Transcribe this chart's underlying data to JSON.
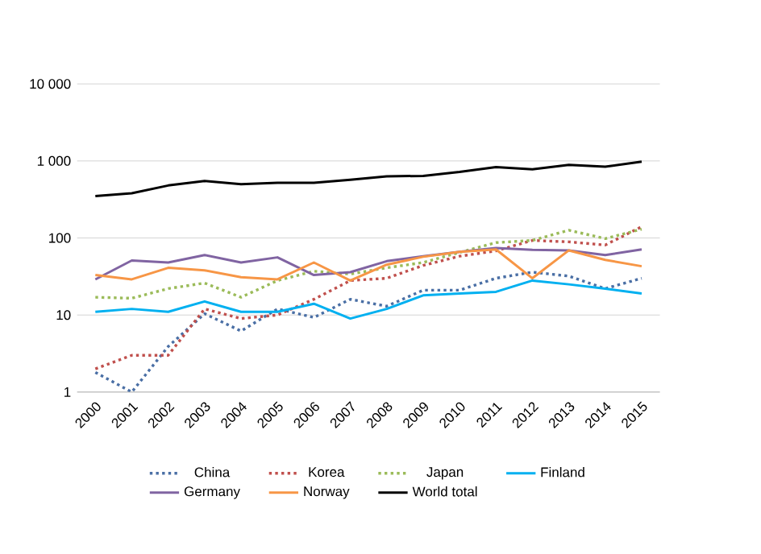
{
  "chart_data": {
    "type": "line",
    "log": "y",
    "grid": "y",
    "legend": "bottom",
    "marker": "none",
    "categories": [
      "2000",
      "2001",
      "2002",
      "2003",
      "2004",
      "2005",
      "2006",
      "2007",
      "2008",
      "2009",
      "2010",
      "2011",
      "2012",
      "2013",
      "2014",
      "2015"
    ],
    "ylim": [
      1,
      10000
    ],
    "yticks": [
      {
        "value": 1,
        "label": "1"
      },
      {
        "value": 10,
        "label": "10"
      },
      {
        "value": 100,
        "label": "100"
      },
      {
        "value": 1000,
        "label": "1 000"
      },
      {
        "value": 10000,
        "label": "10 000"
      }
    ],
    "series": [
      {
        "name": "China",
        "color": "#4a6fa5",
        "line_style": "dotted",
        "values": [
          1.8,
          1,
          3.9,
          10.4,
          6.2,
          12,
          9.3,
          16,
          13,
          21,
          21,
          30,
          36,
          32,
          22,
          30
        ]
      },
      {
        "name": "Korea",
        "color": "#c0504d",
        "line_style": "dotted",
        "values": [
          2,
          3,
          3,
          12,
          9,
          10,
          16,
          28,
          30,
          44,
          58,
          68,
          93,
          89,
          81,
          140
        ]
      },
      {
        "name": "Japan",
        "color": "#9bbb59",
        "line_style": "dotted",
        "values": [
          17,
          16.5,
          22,
          26,
          17,
          28,
          37,
          34,
          41,
          48,
          65,
          87,
          93,
          126,
          98,
          130
        ]
      },
      {
        "name": "Finland",
        "color": "#00b0f0",
        "line_style": "solid",
        "values": [
          11,
          12,
          11,
          15,
          11,
          11,
          14,
          9,
          12,
          18,
          19,
          20,
          28,
          25,
          22,
          19
        ]
      },
      {
        "name": "Germany",
        "color": "#8064a2",
        "line_style": "solid",
        "values": [
          29,
          51,
          48,
          60,
          48,
          56,
          33,
          36,
          50,
          58,
          66,
          74,
          70,
          69,
          60,
          71
        ]
      },
      {
        "name": "Norway",
        "color": "#f79646",
        "line_style": "solid",
        "values": [
          33,
          29,
          41,
          38,
          31,
          29,
          48,
          28,
          45,
          57,
          66,
          71,
          30,
          69,
          52,
          43
        ]
      },
      {
        "name": "World total",
        "color": "#000000",
        "line_style": "solid",
        "values": [
          350,
          380,
          480,
          550,
          500,
          520,
          520,
          570,
          630,
          640,
          720,
          830,
          780,
          890,
          840,
          980
        ]
      }
    ]
  }
}
